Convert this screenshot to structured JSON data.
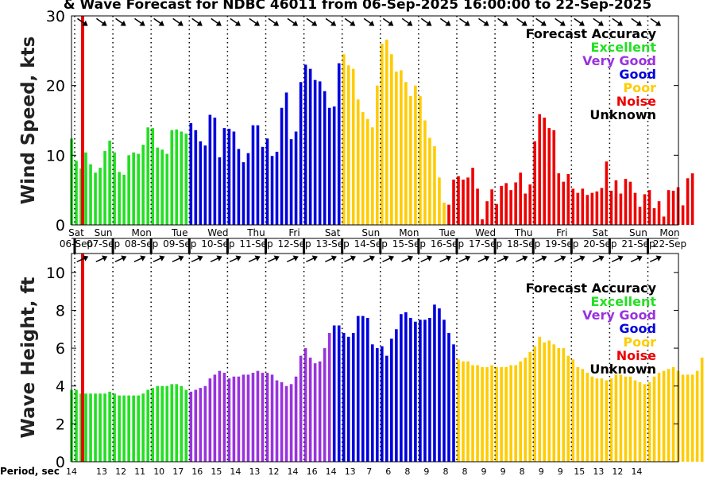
{
  "title": "& Wave Forecast for NDBC 46011 from 06-Sep-2025 16:00:00 to 22-Sep-2025",
  "period_label": "Period, sec",
  "period_ticks": [
    "14",
    "13",
    "12",
    "11",
    "10",
    "17",
    "16",
    "15",
    "14",
    "13",
    "12",
    "14",
    "16",
    "14",
    "13",
    "7",
    "6",
    "8",
    "9",
    "8",
    "8",
    "9",
    "9",
    "8",
    "9",
    "9",
    "15",
    "13",
    "12",
    "14"
  ],
  "day_labels": [
    {
      "dow": "Sat",
      "date": "06-Sep"
    },
    {
      "dow": "Sun",
      "date": "07-Sep"
    },
    {
      "dow": "Mon",
      "date": "08-Sep"
    },
    {
      "dow": "Tue",
      "date": "09-Sep"
    },
    {
      "dow": "Wed",
      "date": "10-Sep"
    },
    {
      "dow": "Thu",
      "date": "11-Sep"
    },
    {
      "dow": "Fri",
      "date": "12-Sep"
    },
    {
      "dow": "Sat",
      "date": "13-Sep"
    },
    {
      "dow": "Sun",
      "date": "14-Sep"
    },
    {
      "dow": "Mon",
      "date": "15-Sep"
    },
    {
      "dow": "Tue",
      "date": "16-Sep"
    },
    {
      "dow": "Wed",
      "date": "17-Sep"
    },
    {
      "dow": "Thu",
      "date": "18-Sep"
    },
    {
      "dow": "Fri",
      "date": "19-Sep"
    },
    {
      "dow": "Sat",
      "date": "20-Sep"
    },
    {
      "dow": "Sun",
      "date": "21-Sep"
    },
    {
      "dow": "Mon",
      "date": "22-Sep"
    }
  ],
  "legend": {
    "title": "Forecast Accuracy",
    "items": [
      {
        "label": "Excellent",
        "color": "#22e022"
      },
      {
        "label": "Very Good",
        "color": "#9933dd"
      },
      {
        "label": "Good",
        "color": "#0000dd"
      },
      {
        "label": "Poor",
        "color": "#ffcc00"
      },
      {
        "label": "Noise",
        "color": "#ee0000"
      },
      {
        "label": "Unknown",
        "color": "#000000"
      }
    ]
  },
  "colors": {
    "excellent": "#22e022",
    "very_good": "#9933dd",
    "good": "#0000dd",
    "poor": "#ffcc00",
    "noise": "#ee0000",
    "now_line": "#ee0000"
  },
  "chart_data": [
    {
      "type": "bar",
      "ylabel": "Wind Speed, kts",
      "ylim": [
        0,
        30
      ],
      "yticks": [
        0,
        10,
        20,
        30
      ],
      "x_unit": "3-hourly, days from 06-Sep 00:00",
      "x_start": 0.667,
      "x_step": 0.125,
      "values": [
        12.4,
        9.2,
        8.1,
        10.4,
        8.7,
        7.5,
        8.2,
        10.6,
        12.1,
        10.4,
        7.6,
        7.2,
        10.0,
        10.4,
        10.2,
        11.5,
        14.0,
        13.9,
        11.1,
        10.8,
        10.2,
        13.6,
        13.7,
        13.4,
        13.1,
        14.6,
        13.6,
        12.0,
        11.4,
        15.8,
        15.4,
        9.7,
        13.9,
        13.8,
        13.4,
        10.9,
        9.0,
        10.3,
        14.3,
        14.3,
        11.2,
        12.4,
        9.9,
        10.5,
        16.8,
        19.0,
        12.3,
        13.4,
        20.5,
        23.0,
        22.4,
        20.8,
        20.6,
        19.2,
        16.8,
        17.0,
        23.2,
        24.5,
        22.9,
        22.4,
        18.0,
        16.2,
        15.2,
        14.0,
        20.0,
        26.0,
        26.6,
        24.5,
        22.0,
        22.2,
        20.5,
        18.5,
        20.0,
        18.5,
        15.0,
        12.5,
        11.3,
        6.8,
        3.2,
        2.9,
        6.5,
        7.0,
        6.5,
        6.8,
        8.2,
        5.2,
        0.8,
        3.4,
        5.1,
        3.0,
        5.6,
        6.0,
        5.0,
        6.1,
        7.5,
        4.5,
        5.8,
        12.0,
        15.9,
        15.4,
        13.9,
        13.6,
        7.4,
        6.2,
        7.3,
        5.2,
        4.6,
        5.2,
        4.3,
        4.6,
        4.8,
        5.3,
        9.1,
        4.9,
        6.4,
        4.5,
        6.6,
        6.2,
        4.6,
        2.6,
        4.4,
        5.0,
        2.4,
        3.4,
        1.2,
        5.0,
        4.9,
        5.4,
        2.8,
        6.7,
        7.4
      ],
      "colors": [
        "excellent",
        "excellent",
        "excellent",
        "excellent",
        "excellent",
        "excellent",
        "excellent",
        "excellent",
        "excellent",
        "excellent",
        "excellent",
        "excellent",
        "excellent",
        "excellent",
        "excellent",
        "excellent",
        "excellent",
        "excellent",
        "excellent",
        "excellent",
        "excellent",
        "excellent",
        "excellent",
        "excellent",
        "excellent",
        "good",
        "good",
        "good",
        "good",
        "good",
        "good",
        "good",
        "good",
        "good",
        "good",
        "good",
        "good",
        "good",
        "good",
        "good",
        "good",
        "good",
        "good",
        "good",
        "good",
        "good",
        "good",
        "good",
        "good",
        "good",
        "good",
        "good",
        "good",
        "good",
        "good",
        "good",
        "good",
        "poor",
        "poor",
        "poor",
        "poor",
        "poor",
        "poor",
        "poor",
        "poor",
        "poor",
        "poor",
        "poor",
        "poor",
        "poor",
        "poor",
        "poor",
        "poor",
        "poor",
        "poor",
        "poor",
        "poor",
        "poor",
        "poor",
        "noise",
        "noise",
        "noise",
        "noise",
        "noise",
        "noise",
        "noise",
        "noise",
        "noise",
        "noise",
        "noise",
        "noise",
        "noise",
        "noise",
        "noise",
        "noise",
        "noise",
        "noise",
        "noise",
        "noise",
        "noise",
        "noise",
        "noise",
        "noise",
        "noise",
        "noise",
        "noise",
        "noise",
        "noise",
        "noise",
        "noise",
        "noise",
        "noise",
        "noise",
        "noise",
        "noise",
        "noise",
        "noise",
        "noise",
        "noise",
        "noise",
        "noise",
        "noise",
        "noise",
        "noise",
        "noise",
        "noise",
        "noise",
        "noise",
        "noise",
        "noise",
        "noise",
        "noise",
        "noise",
        "noise",
        "noise"
      ]
    },
    {
      "type": "bar",
      "ylabel": "Wave Height, ft",
      "ylim": [
        0,
        11
      ],
      "yticks": [
        0,
        2,
        4,
        6,
        8,
        10
      ],
      "x_unit": "3-hourly, days from 06-Sep 00:00",
      "x_start": 0.667,
      "x_step": 0.125,
      "values": [
        3.8,
        3.8,
        3.6,
        3.6,
        3.6,
        3.6,
        3.6,
        3.6,
        3.7,
        3.6,
        3.5,
        3.5,
        3.5,
        3.5,
        3.5,
        3.6,
        3.8,
        3.9,
        4.0,
        4.0,
        4.0,
        4.1,
        4.1,
        4.0,
        3.8,
        3.7,
        3.8,
        3.9,
        4.0,
        4.4,
        4.6,
        4.8,
        4.7,
        4.4,
        4.5,
        4.5,
        4.6,
        4.6,
        4.7,
        4.8,
        4.7,
        4.7,
        4.6,
        4.3,
        4.2,
        4.0,
        4.1,
        4.5,
        5.6,
        6.0,
        5.5,
        5.2,
        5.3,
        6.0,
        6.8,
        7.2,
        7.2,
        6.8,
        6.6,
        6.8,
        7.7,
        7.7,
        7.6,
        6.2,
        6.0,
        6.1,
        5.6,
        6.5,
        7.0,
        7.8,
        7.9,
        7.6,
        7.4,
        7.5,
        7.5,
        7.6,
        8.3,
        8.1,
        7.5,
        6.8,
        6.2,
        5.4,
        5.3,
        5.3,
        5.1,
        5.1,
        5.0,
        5.0,
        5.1,
        5.0,
        5.0,
        5.0,
        5.1,
        5.1,
        5.3,
        5.5,
        5.8,
        6.1,
        6.6,
        6.3,
        6.4,
        6.2,
        6.0,
        6.0,
        5.6,
        5.4,
        5.0,
        4.9,
        4.7,
        4.5,
        4.4,
        4.4,
        4.3,
        4.4,
        4.6,
        4.6,
        4.5,
        4.5,
        4.3,
        4.2,
        4.1,
        4.2,
        4.5,
        4.7,
        4.8,
        4.9,
        5.0,
        4.8,
        4.6,
        4.6,
        4.6,
        4.8,
        5.5
      ],
      "colors": [
        "excellent",
        "excellent",
        "excellent",
        "excellent",
        "excellent",
        "excellent",
        "excellent",
        "excellent",
        "excellent",
        "excellent",
        "excellent",
        "excellent",
        "excellent",
        "excellent",
        "excellent",
        "excellent",
        "excellent",
        "excellent",
        "excellent",
        "excellent",
        "excellent",
        "excellent",
        "excellent",
        "excellent",
        "excellent",
        "very_good",
        "very_good",
        "very_good",
        "very_good",
        "very_good",
        "very_good",
        "very_good",
        "very_good",
        "very_good",
        "very_good",
        "very_good",
        "very_good",
        "very_good",
        "very_good",
        "very_good",
        "very_good",
        "very_good",
        "very_good",
        "very_good",
        "very_good",
        "very_good",
        "very_good",
        "very_good",
        "very_good",
        "very_good",
        "very_good",
        "very_good",
        "very_good",
        "very_good",
        "very_good",
        "good",
        "good",
        "good",
        "good",
        "good",
        "good",
        "good",
        "good",
        "good",
        "good",
        "good",
        "good",
        "good",
        "good",
        "good",
        "good",
        "good",
        "good",
        "good",
        "good",
        "good",
        "good",
        "good",
        "good",
        "good",
        "good",
        "poor",
        "poor",
        "poor",
        "poor",
        "poor",
        "poor",
        "poor",
        "poor",
        "poor",
        "poor",
        "poor",
        "poor",
        "poor",
        "poor",
        "poor",
        "poor",
        "poor",
        "poor",
        "poor",
        "poor",
        "poor",
        "poor",
        "poor",
        "poor",
        "poor",
        "poor",
        "poor",
        "poor",
        "poor",
        "poor",
        "poor",
        "poor",
        "poor",
        "poor",
        "poor",
        "poor",
        "poor",
        "poor",
        "poor",
        "poor",
        "poor",
        "poor",
        "poor",
        "poor",
        "poor",
        "poor",
        "poor",
        "poor",
        "poor",
        "poor",
        "poor",
        "poor",
        "poor",
        "poor",
        "poor"
      ]
    }
  ]
}
